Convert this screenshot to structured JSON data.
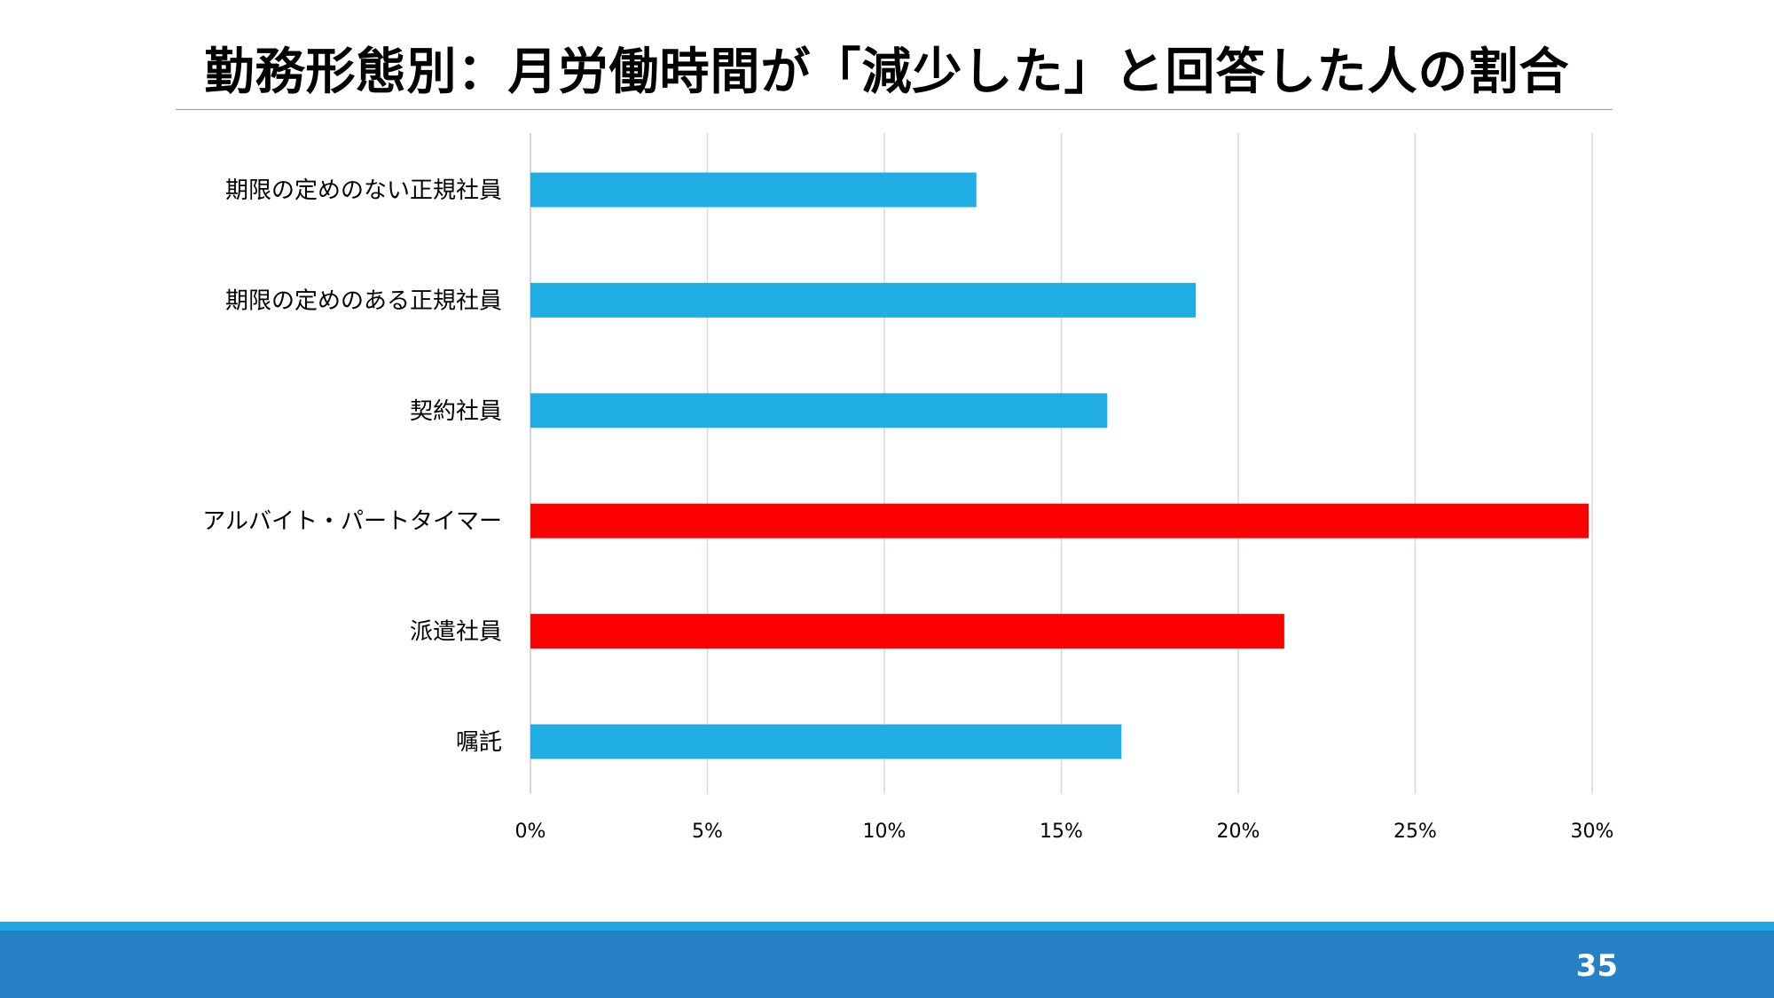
{
  "slide": {
    "title": "勤務形態別：月労働時間が「減少した」と回答した人の割合",
    "page_number": "35"
  },
  "colors": {
    "normal_bar": "#1fade4",
    "highlight_bar": "#ff0000",
    "footer_light": "#1fa7e0",
    "footer_dark": "#2580c6"
  },
  "chart_data": {
    "type": "bar",
    "orientation": "horizontal",
    "title": "勤務形態別：月労働時間が「減少した」と回答した人の割合",
    "categories": [
      "期限の定めのない正規社員",
      "期限の定めのある正規社員",
      "契約社員",
      "アルバイト・パートタイマー",
      "派遣社員",
      "嘱託"
    ],
    "values": [
      12.6,
      18.8,
      16.3,
      29.9,
      21.3,
      16.7
    ],
    "highlighted": [
      false,
      false,
      false,
      true,
      true,
      false
    ],
    "unit": "%",
    "xlim": [
      0,
      30
    ],
    "xticks": [
      0,
      5,
      10,
      15,
      20,
      25,
      30
    ],
    "xtick_labels": [
      "0%",
      "5%",
      "10%",
      "15%",
      "20%",
      "25%",
      "30%"
    ],
    "grid": "vertical",
    "legend": "none"
  }
}
